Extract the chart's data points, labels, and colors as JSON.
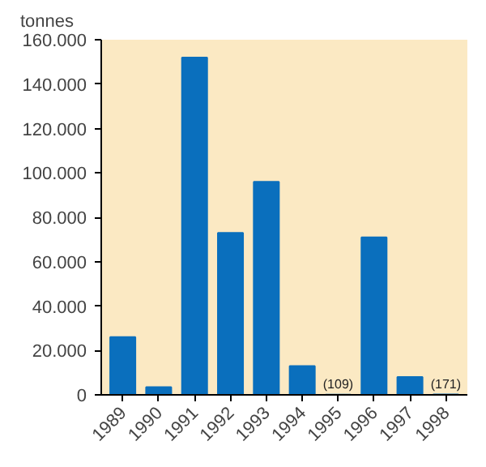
{
  "chart_data": {
    "type": "bar",
    "ylabel": "tonnes",
    "categories": [
      "1989",
      "1990",
      "1991",
      "1992",
      "1993",
      "1994",
      "1995",
      "1996",
      "1997",
      "1998"
    ],
    "values": [
      26000,
      3500,
      152000,
      73000,
      96000,
      13000,
      109,
      71000,
      8000,
      171
    ],
    "value_labels": [
      null,
      null,
      null,
      null,
      null,
      null,
      "(109)",
      null,
      null,
      "(171)"
    ],
    "color": "#0a6fbd",
    "ylim": [
      0,
      160000
    ],
    "yticks": [
      0,
      {
        "value": 20000,
        "label": "20.000"
      },
      {
        "value": 40000,
        "label": "40.000"
      },
      {
        "value": 60000,
        "label": "60.000"
      },
      {
        "value": 80000,
        "label": "80.000"
      },
      {
        "value": 100000,
        "label": "100.000"
      },
      {
        "value": 120000,
        "label": "120.000"
      },
      {
        "value": 140000,
        "label": "140.000"
      },
      {
        "value": 160000,
        "label": "160.000"
      }
    ],
    "grid": false
  }
}
